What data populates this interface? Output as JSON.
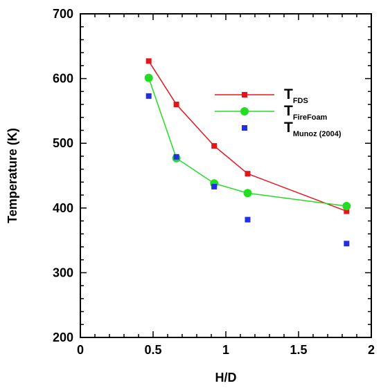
{
  "chart_data": {
    "type": "line",
    "xlabel": "H/D",
    "ylabel": "Temperature (K)",
    "xlim": [
      0,
      2
    ],
    "ylim": [
      200,
      700
    ],
    "xticks": [
      "0",
      "0.5",
      "1",
      "1.5",
      "2"
    ],
    "yticks": [
      "200",
      "300",
      "400",
      "500",
      "600",
      "700"
    ],
    "grid": false,
    "legend_position": "top-right",
    "series": [
      {
        "name_main": "T",
        "name_sub": "FDS",
        "color": "#e8141c",
        "marker": "square",
        "line": true,
        "x": [
          0.47,
          0.66,
          0.92,
          1.15,
          1.83
        ],
        "y": [
          627,
          560,
          496,
          453,
          395
        ]
      },
      {
        "name_main": "T",
        "name_sub": "FireFoam",
        "color": "#22dd22",
        "marker": "circle",
        "line": true,
        "x": [
          0.47,
          0.66,
          0.92,
          1.15,
          1.83
        ],
        "y": [
          601,
          477,
          438,
          423,
          403
        ]
      },
      {
        "name_main": "T",
        "name_sub": "Munoz (2004)",
        "color": "#2230e0",
        "marker": "square",
        "line": false,
        "x": [
          0.47,
          0.66,
          0.92,
          1.15,
          1.83
        ],
        "y": [
          573,
          479,
          433,
          382,
          345
        ]
      }
    ]
  }
}
